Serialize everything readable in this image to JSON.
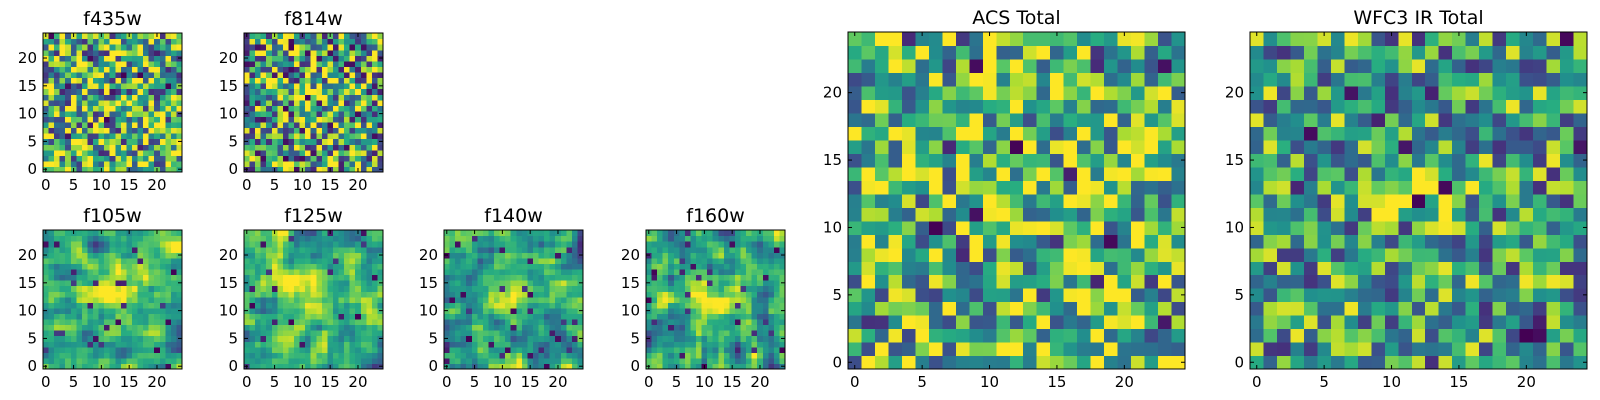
{
  "figure": {
    "colormap": "viridis",
    "colors": {
      "low": "#440154",
      "mid_low": "#31688e",
      "mid": "#35b779",
      "high": "#fde725"
    }
  },
  "chart_data": [
    {
      "type": "heatmap",
      "title": "f435w",
      "grid": [
        25,
        25
      ],
      "xlim": [
        0,
        24
      ],
      "ylim": [
        0,
        24
      ],
      "xticks": [
        "0",
        "5",
        "10",
        "15",
        "20"
      ],
      "yticks": [
        "0",
        "5",
        "10",
        "15",
        "20"
      ],
      "field": "noise"
    },
    {
      "type": "heatmap",
      "title": "f814w",
      "grid": [
        25,
        25
      ],
      "xlim": [
        0,
        24
      ],
      "ylim": [
        0,
        24
      ],
      "xticks": [
        "0",
        "5",
        "10",
        "15",
        "20"
      ],
      "yticks": [
        "0",
        "5",
        "10",
        "15",
        "20"
      ],
      "field": "noise with faint central source"
    },
    {
      "type": "heatmap",
      "title": "f105w",
      "grid": [
        25,
        25
      ],
      "xlim": [
        0,
        24
      ],
      "ylim": [
        0,
        24
      ],
      "xticks": [
        "0",
        "5",
        "10",
        "15",
        "20"
      ],
      "yticks": [
        "0",
        "5",
        "10",
        "15",
        "20"
      ],
      "field": "smoothed noise with central source"
    },
    {
      "type": "heatmap",
      "title": "f125w",
      "grid": [
        25,
        25
      ],
      "xlim": [
        0,
        24
      ],
      "ylim": [
        0,
        24
      ],
      "xticks": [
        "0",
        "5",
        "10",
        "15",
        "20"
      ],
      "yticks": [
        "0",
        "5",
        "10",
        "15",
        "20"
      ],
      "field": "smoothed noise with central source"
    },
    {
      "type": "heatmap",
      "title": "f140w",
      "grid": [
        25,
        25
      ],
      "xlim": [
        0,
        24
      ],
      "ylim": [
        0,
        24
      ],
      "xticks": [
        "0",
        "5",
        "10",
        "15",
        "20"
      ],
      "yticks": [
        "0",
        "5",
        "10",
        "15",
        "20"
      ],
      "field": "smoothed noise with central source"
    },
    {
      "type": "heatmap",
      "title": "f160w",
      "grid": [
        25,
        25
      ],
      "xlim": [
        0,
        24
      ],
      "ylim": [
        0,
        24
      ],
      "xticks": [
        "0",
        "5",
        "10",
        "15",
        "20"
      ],
      "yticks": [
        "0",
        "5",
        "10",
        "15",
        "20"
      ],
      "field": "smoothed noise with central source"
    },
    {
      "type": "heatmap",
      "title": "ACS Total",
      "grid": [
        25,
        25
      ],
      "xlim": [
        0,
        24
      ],
      "ylim": [
        0,
        24
      ],
      "xticks": [
        "0",
        "5",
        "10",
        "15",
        "20"
      ],
      "yticks": [
        "0",
        "5",
        "10",
        "15",
        "20"
      ],
      "field": "noise with central source"
    },
    {
      "type": "heatmap",
      "title": "WFC3 IR Total",
      "grid": [
        25,
        25
      ],
      "xlim": [
        0,
        24
      ],
      "ylim": [
        0,
        24
      ],
      "xticks": [
        "0",
        "5",
        "10",
        "15",
        "20"
      ],
      "yticks": [
        "0",
        "5",
        "10",
        "15",
        "20"
      ],
      "field": "noise with bright central source"
    }
  ]
}
